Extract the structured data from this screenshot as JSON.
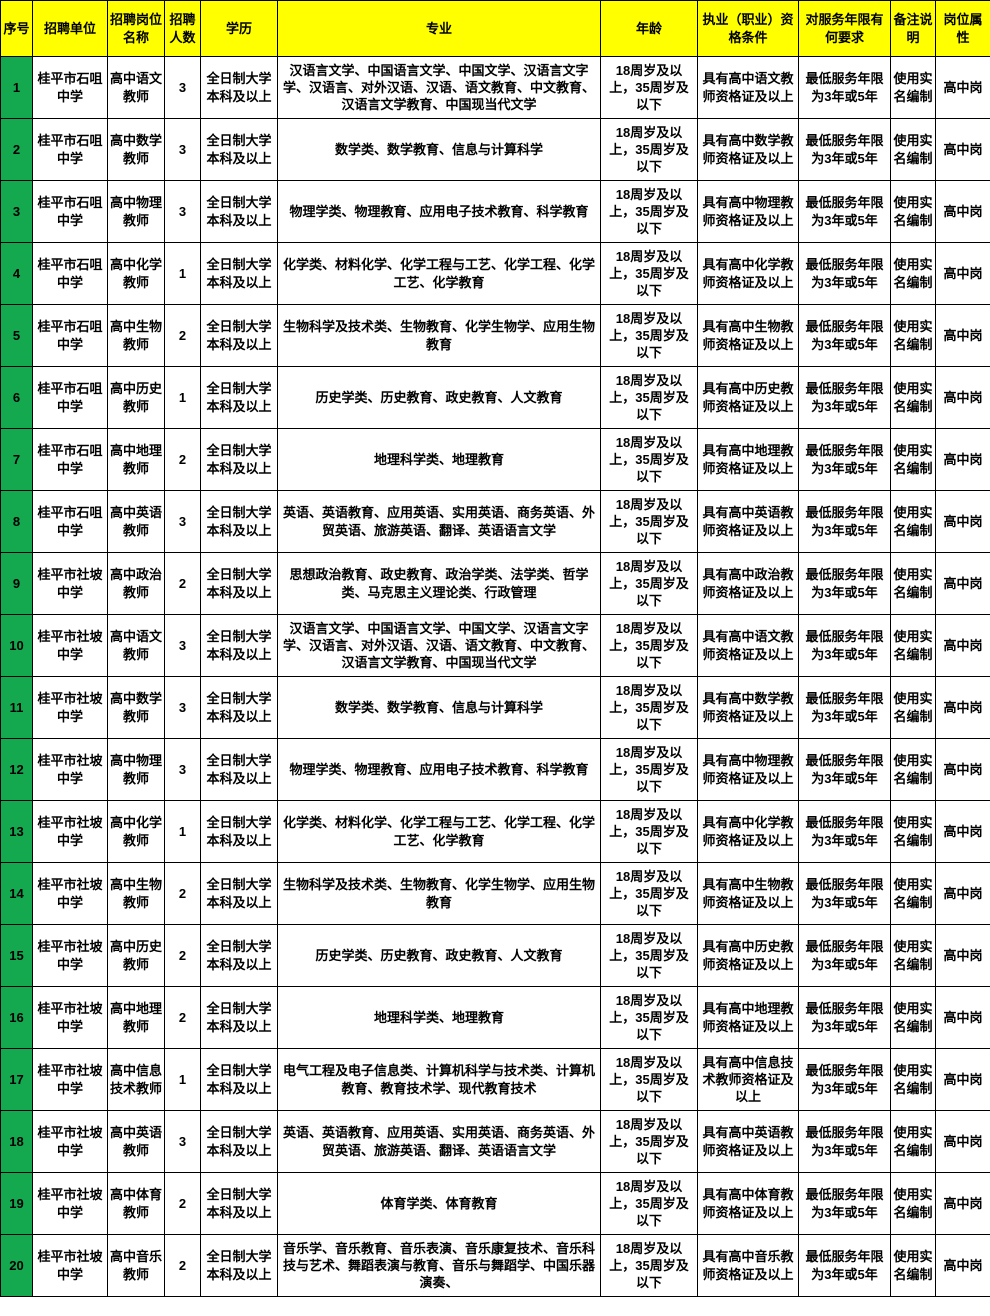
{
  "colors": {
    "header_bg": "#FFFF00",
    "index_bg": "#14A84F",
    "cell_bg": "#FFFFFF",
    "border": "#000000"
  },
  "table": {
    "headers": {
      "no": "序号",
      "unit": "招聘单位",
      "post": "招聘岗位名称",
      "count": "招聘人数",
      "edu": "学历",
      "major": "专业",
      "age": "年龄",
      "qual": "执业（职业）资格条件",
      "service": "对服务年限有何要求",
      "note": "备注说明",
      "attr": "岗位属性"
    },
    "rows": [
      {
        "no": "1",
        "unit": "桂平市石咀中学",
        "post": "高中语文教师",
        "count": "3",
        "edu": "全日制大学本科及以上",
        "major": "汉语言文学、中国语言文学、中国文学、汉语言文字学、汉语言、对外汉语、汉语、语文教育、中文教育、汉语言文学教育、中国现当代文学",
        "age": "18周岁及以上，35周岁及以下",
        "qual": "具有高中语文教师资格证及以上",
        "service": "最低服务年限为3年或5年",
        "note": "使用实名编制",
        "attr": "高中岗"
      },
      {
        "no": "2",
        "unit": "桂平市石咀中学",
        "post": "高中数学教师",
        "count": "3",
        "edu": "全日制大学本科及以上",
        "major": "数学类、数学教育、信息与计算科学",
        "age": "18周岁及以上，35周岁及以下",
        "qual": "具有高中数学教师资格证及以上",
        "service": "最低服务年限为3年或5年",
        "note": "使用实名编制",
        "attr": "高中岗"
      },
      {
        "no": "3",
        "unit": "桂平市石咀中学",
        "post": "高中物理教师",
        "count": "3",
        "edu": "全日制大学本科及以上",
        "major": "物理学类、物理教育、应用电子技术教育、科学教育",
        "age": "18周岁及以上，35周岁及以下",
        "qual": "具有高中物理教师资格证及以上",
        "service": "最低服务年限为3年或5年",
        "note": "使用实名编制",
        "attr": "高中岗"
      },
      {
        "no": "4",
        "unit": "桂平市石咀中学",
        "post": "高中化学教师",
        "count": "1",
        "edu": "全日制大学本科及以上",
        "major": "化学类、材料化学、化学工程与工艺、化学工程、化学工艺、化学教育",
        "age": "18周岁及以上，35周岁及以下",
        "qual": "具有高中化学教师资格证及以上",
        "service": "最低服务年限为3年或5年",
        "note": "使用实名编制",
        "attr": "高中岗"
      },
      {
        "no": "5",
        "unit": "桂平市石咀中学",
        "post": "高中生物教师",
        "count": "2",
        "edu": "全日制大学本科及以上",
        "major": "生物科学及技术类、生物教育、化学生物学、应用生物教育",
        "age": "18周岁及以上，35周岁及以下",
        "qual": "具有高中生物教师资格证及以上",
        "service": "最低服务年限为3年或5年",
        "note": "使用实名编制",
        "attr": "高中岗"
      },
      {
        "no": "6",
        "unit": "桂平市石咀中学",
        "post": "高中历史教师",
        "count": "1",
        "edu": "全日制大学本科及以上",
        "major": "历史学类、历史教育、政史教育、人文教育",
        "age": "18周岁及以上，35周岁及以下",
        "qual": "具有高中历史教师资格证及以上",
        "service": "最低服务年限为3年或5年",
        "note": "使用实名编制",
        "attr": "高中岗"
      },
      {
        "no": "7",
        "unit": "桂平市石咀中学",
        "post": "高中地理教师",
        "count": "2",
        "edu": "全日制大学本科及以上",
        "major": "地理科学类、地理教育",
        "age": "18周岁及以上，35周岁及以下",
        "qual": "具有高中地理教师资格证及以上",
        "service": "最低服务年限为3年或5年",
        "note": "使用实名编制",
        "attr": "高中岗"
      },
      {
        "no": "8",
        "unit": "桂平市石咀中学",
        "post": "高中英语教师",
        "count": "3",
        "edu": "全日制大学本科及以上",
        "major": "英语、英语教育、应用英语、实用英语、商务英语、外贸英语、旅游英语、翻译、英语语言文学",
        "age": "18周岁及以上，35周岁及以下",
        "qual": "具有高中英语教师资格证及以上",
        "service": "最低服务年限为3年或5年",
        "note": "使用实名编制",
        "attr": "高中岗"
      },
      {
        "no": "9",
        "unit": "桂平市社坡中学",
        "post": "高中政治教师",
        "count": "2",
        "edu": "全日制大学本科及以上",
        "major": "思想政治教育、政史教育、政治学类、法学类、哲学类、马克思主义理论类、行政管理",
        "age": "18周岁及以上，35周岁及以下",
        "qual": "具有高中政治教师资格证及以上",
        "service": "最低服务年限为3年或5年",
        "note": "使用实名编制",
        "attr": "高中岗"
      },
      {
        "no": "10",
        "unit": "桂平市社坡中学",
        "post": "高中语文教师",
        "count": "3",
        "edu": "全日制大学本科及以上",
        "major": "汉语言文学、中国语言文学、中国文学、汉语言文字学、汉语言、对外汉语、汉语、语文教育、中文教育、汉语言文学教育、中国现当代文学",
        "age": "18周岁及以上，35周岁及以下",
        "qual": "具有高中语文教师资格证及以上",
        "service": "最低服务年限为3年或5年",
        "note": "使用实名编制",
        "attr": "高中岗"
      },
      {
        "no": "11",
        "unit": "桂平市社坡中学",
        "post": "高中数学教师",
        "count": "3",
        "edu": "全日制大学本科及以上",
        "major": "数学类、数学教育、信息与计算科学",
        "age": "18周岁及以上，35周岁及以下",
        "qual": "具有高中数学教师资格证及以上",
        "service": "最低服务年限为3年或5年",
        "note": "使用实名编制",
        "attr": "高中岗"
      },
      {
        "no": "12",
        "unit": "桂平市社坡中学",
        "post": "高中物理教师",
        "count": "3",
        "edu": "全日制大学本科及以上",
        "major": "物理学类、物理教育、应用电子技术教育、科学教育",
        "age": "18周岁及以上，35周岁及以下",
        "qual": "具有高中物理教师资格证及以上",
        "service": "最低服务年限为3年或5年",
        "note": "使用实名编制",
        "attr": "高中岗"
      },
      {
        "no": "13",
        "unit": "桂平市社坡中学",
        "post": "高中化学教师",
        "count": "1",
        "edu": "全日制大学本科及以上",
        "major": "化学类、材料化学、化学工程与工艺、化学工程、化学工艺、化学教育",
        "age": "18周岁及以上，35周岁及以下",
        "qual": "具有高中化学教师资格证及以上",
        "service": "最低服务年限为3年或5年",
        "note": "使用实名编制",
        "attr": "高中岗"
      },
      {
        "no": "14",
        "unit": "桂平市社坡中学",
        "post": "高中生物教师",
        "count": "2",
        "edu": "全日制大学本科及以上",
        "major": "生物科学及技术类、生物教育、化学生物学、应用生物教育",
        "age": "18周岁及以上，35周岁及以下",
        "qual": "具有高中生物教师资格证及以上",
        "service": "最低服务年限为3年或5年",
        "note": "使用实名编制",
        "attr": "高中岗"
      },
      {
        "no": "15",
        "unit": "桂平市社坡中学",
        "post": "高中历史教师",
        "count": "2",
        "edu": "全日制大学本科及以上",
        "major": "历史学类、历史教育、政史教育、人文教育",
        "age": "18周岁及以上，35周岁及以下",
        "qual": "具有高中历史教师资格证及以上",
        "service": "最低服务年限为3年或5年",
        "note": "使用实名编制",
        "attr": "高中岗"
      },
      {
        "no": "16",
        "unit": "桂平市社坡中学",
        "post": "高中地理教师",
        "count": "2",
        "edu": "全日制大学本科及以上",
        "major": "地理科学类、地理教育",
        "age": "18周岁及以上，35周岁及以下",
        "qual": "具有高中地理教师资格证及以上",
        "service": "最低服务年限为3年或5年",
        "note": "使用实名编制",
        "attr": "高中岗"
      },
      {
        "no": "17",
        "unit": "桂平市社坡中学",
        "post": "高中信息技术教师",
        "count": "1",
        "edu": "全日制大学本科及以上",
        "major": "电气工程及电子信息类、计算机科学与技术类、计算机教育、教育技术学、现代教育技术",
        "age": "18周岁及以上，35周岁及以下",
        "qual": "具有高中信息技术教师资格证及以上",
        "service": "最低服务年限为3年或5年",
        "note": "使用实名编制",
        "attr": "高中岗"
      },
      {
        "no": "18",
        "unit": "桂平市社坡中学",
        "post": "高中英语教师",
        "count": "3",
        "edu": "全日制大学本科及以上",
        "major": "英语、英语教育、应用英语、实用英语、商务英语、外贸英语、旅游英语、翻译、英语语言文学",
        "age": "18周岁及以上，35周岁及以下",
        "qual": "具有高中英语教师资格证及以上",
        "service": "最低服务年限为3年或5年",
        "note": "使用实名编制",
        "attr": "高中岗"
      },
      {
        "no": "19",
        "unit": "桂平市社坡中学",
        "post": "高中体育教师",
        "count": "2",
        "edu": "全日制大学本科及以上",
        "major": "体育学类、体育教育",
        "age": "18周岁及以上，35周岁及以下",
        "qual": "具有高中体育教师资格证及以上",
        "service": "最低服务年限为3年或5年",
        "note": "使用实名编制",
        "attr": "高中岗"
      },
      {
        "no": "20",
        "unit": "桂平市社坡中学",
        "post": "高中音乐教师",
        "count": "2",
        "edu": "全日制大学本科及以上",
        "major": "音乐学、音乐教育、音乐表演、音乐康复技术、音乐科技与艺术、舞蹈表演与教育、音乐与舞蹈学、中国乐器演奏、",
        "age": "18周岁及以上，35周岁及以下",
        "qual": "具有高中音乐教师资格证及以上",
        "service": "最低服务年限为3年或5年",
        "note": "使用实名编制",
        "attr": "高中岗"
      }
    ]
  }
}
